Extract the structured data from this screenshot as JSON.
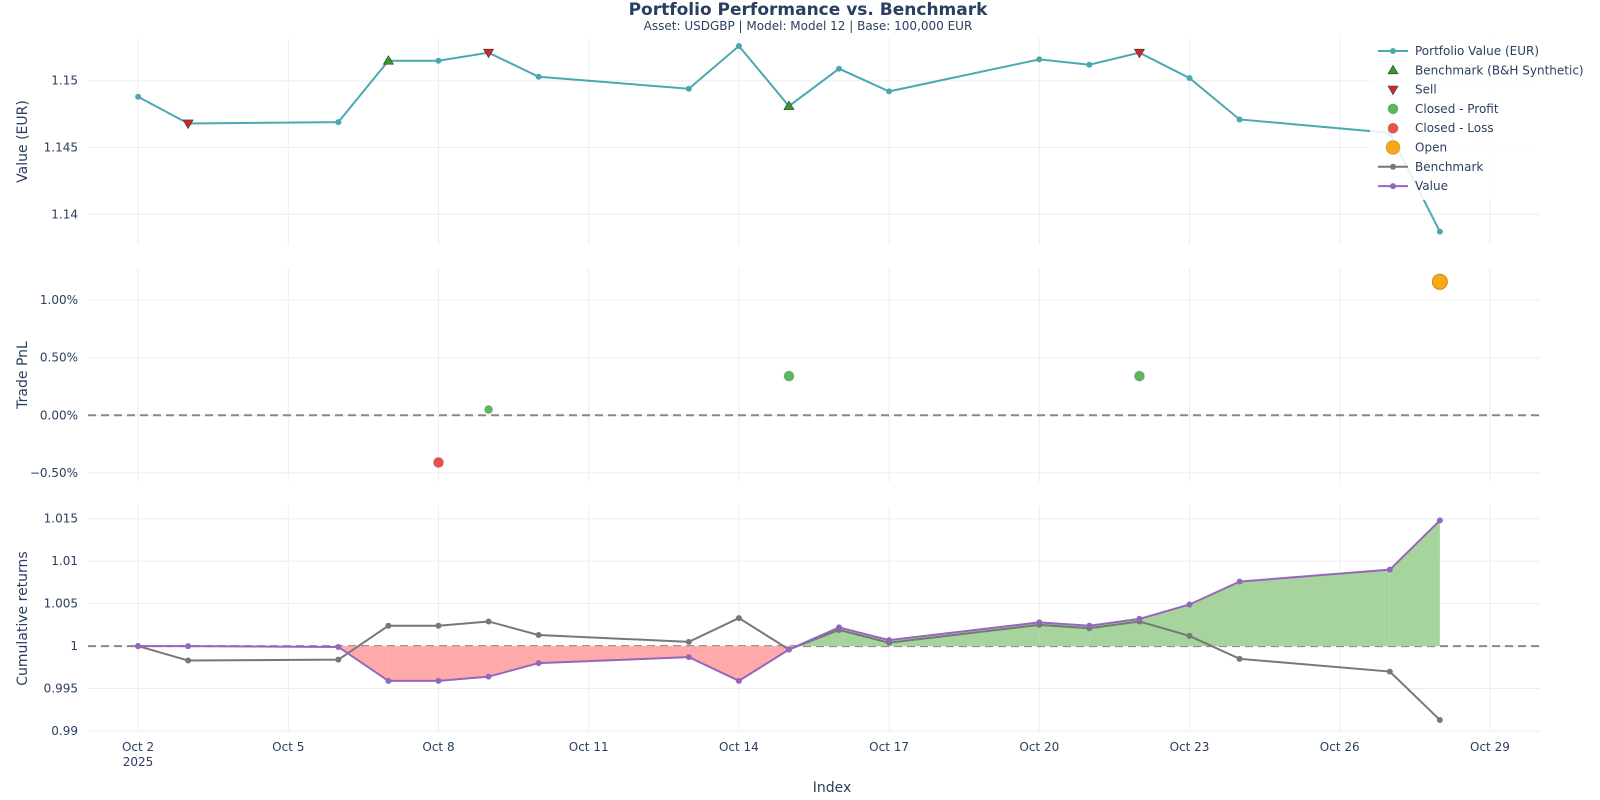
{
  "title": "Portfolio Performance vs. Benchmark",
  "subtitle": "Asset: USDGBP | Model: Model 12 | Base: 100,000 EUR",
  "xlabel": "Index",
  "x_ticks": [
    "Oct 2",
    "Oct 5",
    "Oct 8",
    "Oct 11",
    "Oct 14",
    "Oct 17",
    "Oct 20",
    "Oct 23",
    "Oct 26",
    "Oct 29"
  ],
  "x_year": "2025",
  "colors": {
    "portfolio": "#4aa9b0",
    "buy": "#2ca02c",
    "sell": "#d62728",
    "profit": "#5cb85c",
    "loss": "#e8524a",
    "open": "#f5a916",
    "benchmark": "#777777",
    "value": "#9467bd",
    "fill_pos": "#a6d49c",
    "fill_neg": "#ffaaaa"
  },
  "legend": {
    "position": "top-right",
    "items": [
      {
        "label": "Portfolio Value (EUR)",
        "symbol": "line-dot",
        "color": "#4aa9b0"
      },
      {
        "label": "Benchmark (B&H Synthetic)",
        "symbol": "triangle-up",
        "color": "#2ca02c"
      },
      {
        "label": "Sell",
        "symbol": "triangle-down",
        "color": "#d62728"
      },
      {
        "label": "Closed - Profit",
        "symbol": "circle",
        "color": "#5cb85c"
      },
      {
        "label": "Closed - Loss",
        "symbol": "circle",
        "color": "#e8524a"
      },
      {
        "label": "Open",
        "symbol": "circle-large",
        "color": "#f5a916"
      },
      {
        "label": "Benchmark",
        "symbol": "line-dot",
        "color": "#777777"
      },
      {
        "label": "Value",
        "symbol": "line-dot",
        "color": "#9467bd"
      }
    ]
  },
  "chart_data": [
    {
      "type": "line",
      "panel": "top",
      "ylabel": "Value (EUR)",
      "ylim": [
        1.1377,
        1.1532
      ],
      "y_ticks": [
        {
          "v": 1.14,
          "label": "1.14"
        },
        {
          "v": 1.145,
          "label": "1.145"
        },
        {
          "v": 1.15,
          "label": "1.15"
        }
      ],
      "grid": true,
      "x": [
        "2025-10-02",
        "2025-10-03",
        "2025-10-06",
        "2025-10-07",
        "2025-10-08",
        "2025-10-09",
        "2025-10-10",
        "2025-10-13",
        "2025-10-14",
        "2025-10-15",
        "2025-10-16",
        "2025-10-17",
        "2025-10-20",
        "2025-10-21",
        "2025-10-22",
        "2025-10-23",
        "2025-10-24",
        "2025-10-27",
        "2025-10-28"
      ],
      "series": [
        {
          "name": "Portfolio Value (EUR)",
          "values": [
            1.1488,
            1.1468,
            1.1469,
            1.1515,
            1.1515,
            1.1521,
            1.1503,
            1.1494,
            1.1526,
            1.1481,
            1.1509,
            1.1492,
            1.1516,
            1.1512,
            1.1521,
            1.1502,
            1.1471,
            1.1461,
            1.1387
          ]
        }
      ],
      "markers": [
        {
          "name": "Benchmark (B&H Synthetic)",
          "symbol": "triangle-up",
          "points": [
            {
              "x": "2025-10-07",
              "y": 1.1515
            },
            {
              "x": "2025-10-15",
              "y": 1.1481
            }
          ]
        },
        {
          "name": "Sell",
          "symbol": "triangle-down",
          "points": [
            {
              "x": "2025-10-03",
              "y": 1.1468
            },
            {
              "x": "2025-10-09",
              "y": 1.1521
            },
            {
              "x": "2025-10-22",
              "y": 1.1521
            }
          ]
        }
      ]
    },
    {
      "type": "scatter",
      "panel": "middle",
      "ylabel": "Trade PnL",
      "ylim": [
        -0.0058,
        0.0128
      ],
      "y_ticks": [
        {
          "v": -0.005,
          "label": "−0.50%"
        },
        {
          "v": 0,
          "label": "0.00%"
        },
        {
          "v": 0.005,
          "label": "0.50%"
        },
        {
          "v": 0.01,
          "label": "1.00%"
        }
      ],
      "reference_line": 0,
      "grid": true,
      "series": [
        {
          "name": "Closed - Profit",
          "points": [
            {
              "x": "2025-10-09",
              "y": 0.0005
            },
            {
              "x": "2025-10-15",
              "y": 0.0034
            },
            {
              "x": "2025-10-22",
              "y": 0.0034
            }
          ]
        },
        {
          "name": "Closed - Loss",
          "points": [
            {
              "x": "2025-10-08",
              "y": -0.0041
            }
          ]
        },
        {
          "name": "Open",
          "points": [
            {
              "x": "2025-10-28",
              "y": 0.0116
            }
          ]
        }
      ]
    },
    {
      "type": "area",
      "panel": "bottom",
      "ylabel": "Cumulative returns",
      "ylim": [
        0.99,
        1.0165
      ],
      "y_ticks": [
        {
          "v": 0.99,
          "label": "0.99"
        },
        {
          "v": 0.995,
          "label": "0.995"
        },
        {
          "v": 1.0,
          "label": "1"
        },
        {
          "v": 1.005,
          "label": "1.005"
        },
        {
          "v": 1.01,
          "label": "1.01"
        },
        {
          "v": 1.015,
          "label": "1.015"
        }
      ],
      "reference_line": 1,
      "grid": true,
      "x": [
        "2025-10-02",
        "2025-10-03",
        "2025-10-06",
        "2025-10-07",
        "2025-10-08",
        "2025-10-09",
        "2025-10-10",
        "2025-10-13",
        "2025-10-14",
        "2025-10-15",
        "2025-10-16",
        "2025-10-17",
        "2025-10-20",
        "2025-10-21",
        "2025-10-22",
        "2025-10-23",
        "2025-10-24",
        "2025-10-27",
        "2025-10-28"
      ],
      "series": [
        {
          "name": "Benchmark",
          "values": [
            1.0,
            0.9983,
            0.9984,
            1.0024,
            1.0024,
            1.0029,
            1.0013,
            1.0005,
            1.0033,
            0.9996,
            1.0019,
            1.0004,
            1.0025,
            1.0021,
            1.0029,
            1.0012,
            0.9985,
            0.997,
            0.9913
          ]
        },
        {
          "name": "Value",
          "values": [
            1.0,
            1.0,
            0.9999,
            0.9959,
            0.9959,
            0.9964,
            0.998,
            0.9987,
            0.9959,
            0.9996,
            1.0022,
            1.0007,
            1.0028,
            1.0024,
            1.0032,
            1.0049,
            1.0076,
            1.009,
            1.0148
          ]
        }
      ]
    }
  ]
}
